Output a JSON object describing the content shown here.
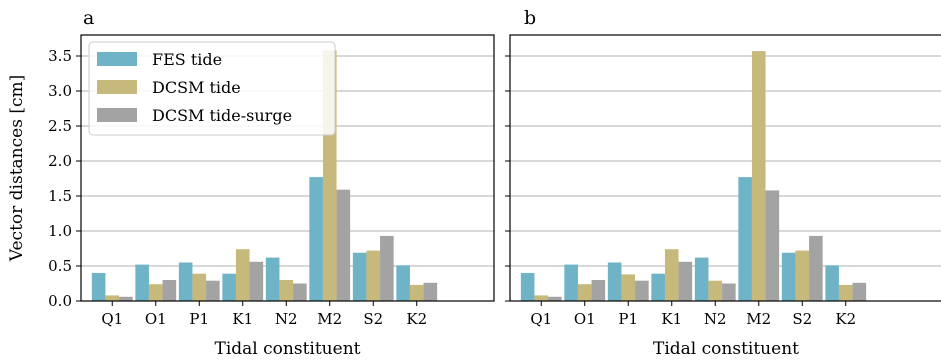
{
  "colors": {
    "fes": "#6fb3c6",
    "dcsm": "#c7b97b",
    "surge": "#a3a3a3",
    "grid": "#b0b0b0"
  },
  "chart_data": [
    {
      "type": "bar",
      "panel_label": "a",
      "xlabel": "Tidal constituent",
      "ylabel": "Vector distances [cm]",
      "ylim": [
        0,
        3.8
      ],
      "yticks": [
        0.0,
        0.5,
        1.0,
        1.5,
        2.0,
        2.5,
        3.0,
        3.5
      ],
      "ytick_labels": [
        "0.0",
        "0.5",
        "1.0",
        "1.5",
        "2.0",
        "2.5",
        "3.0",
        "3.5"
      ],
      "grid": true,
      "legend": "top-left",
      "categories": [
        "Q1",
        "O1",
        "P1",
        "K1",
        "N2",
        "M2",
        "S2",
        "K2"
      ],
      "series": [
        {
          "name": "FES tide",
          "values": [
            0.4,
            0.52,
            0.55,
            0.39,
            0.62,
            1.77,
            0.69,
            0.51
          ]
        },
        {
          "name": "DCSM tide",
          "values": [
            0.08,
            0.24,
            0.39,
            0.74,
            0.3,
            3.58,
            0.72,
            0.23
          ]
        },
        {
          "name": "DCSM tide-surge",
          "values": [
            0.06,
            0.3,
            0.29,
            0.56,
            0.25,
            1.59,
            0.93,
            0.26
          ]
        }
      ]
    },
    {
      "type": "bar",
      "panel_label": "b",
      "xlabel": "Tidal constituent",
      "ylabel": "",
      "ylim": [
        0,
        3.8
      ],
      "yticks": [
        0.0,
        0.5,
        1.0,
        1.5,
        2.0,
        2.5,
        3.0,
        3.5
      ],
      "grid": true,
      "categories": [
        "Q1",
        "O1",
        "P1",
        "K1",
        "N2",
        "M2",
        "S2",
        "K2"
      ],
      "series": [
        {
          "name": "FES tide",
          "values": [
            0.4,
            0.52,
            0.55,
            0.39,
            0.62,
            1.77,
            0.69,
            0.51
          ]
        },
        {
          "name": "DCSM tide",
          "values": [
            0.08,
            0.24,
            0.38,
            0.74,
            0.29,
            3.57,
            0.72,
            0.23
          ]
        },
        {
          "name": "DCSM tide-surge",
          "values": [
            0.06,
            0.3,
            0.29,
            0.56,
            0.25,
            1.58,
            0.93,
            0.26
          ]
        }
      ]
    }
  ]
}
